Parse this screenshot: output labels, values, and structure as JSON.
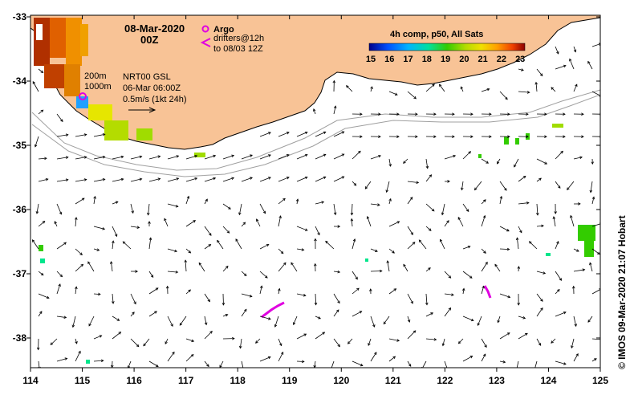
{
  "map": {
    "lon_labels": [
      "114",
      "115",
      "116",
      "117",
      "118",
      "119",
      "120",
      "121",
      "122",
      "123",
      "124",
      "125"
    ],
    "lat_labels": [
      "-33",
      "-34",
      "-35",
      "-36",
      "-37",
      "-38"
    ],
    "land_color": "#f8c396",
    "header": {
      "date": "08-Mar-2020",
      "time": "00Z"
    },
    "argo": {
      "label": "Argo",
      "color": "#e000e0"
    },
    "drifters": {
      "line1": "drifters@12h",
      "line2": "to 08/03 12Z",
      "color": "#e000e0"
    },
    "depth_contours": {
      "label1": "200m",
      "label2": "1000m"
    },
    "velocity_info": {
      "line1": "NRT00 GSL",
      "line2": "06-Mar 06:00Z",
      "line3": "0.5m/s (1kt 24h)"
    },
    "colorbar": {
      "title": "4h comp, p50, All Sats",
      "ticks": [
        "15",
        "16",
        "17",
        "18",
        "19",
        "20",
        "21",
        "22",
        "23"
      ],
      "colors": [
        "#00008b",
        "#0033cc",
        "#0080ff",
        "#00c8ff",
        "#00e68c",
        "#33cc00",
        "#a0dc00",
        "#e6e600",
        "#ffb400",
        "#ff7800",
        "#e63200",
        "#8b0000"
      ]
    },
    "credit": "© IMOS 09-Mar-2020 21:07 Hobart"
  }
}
